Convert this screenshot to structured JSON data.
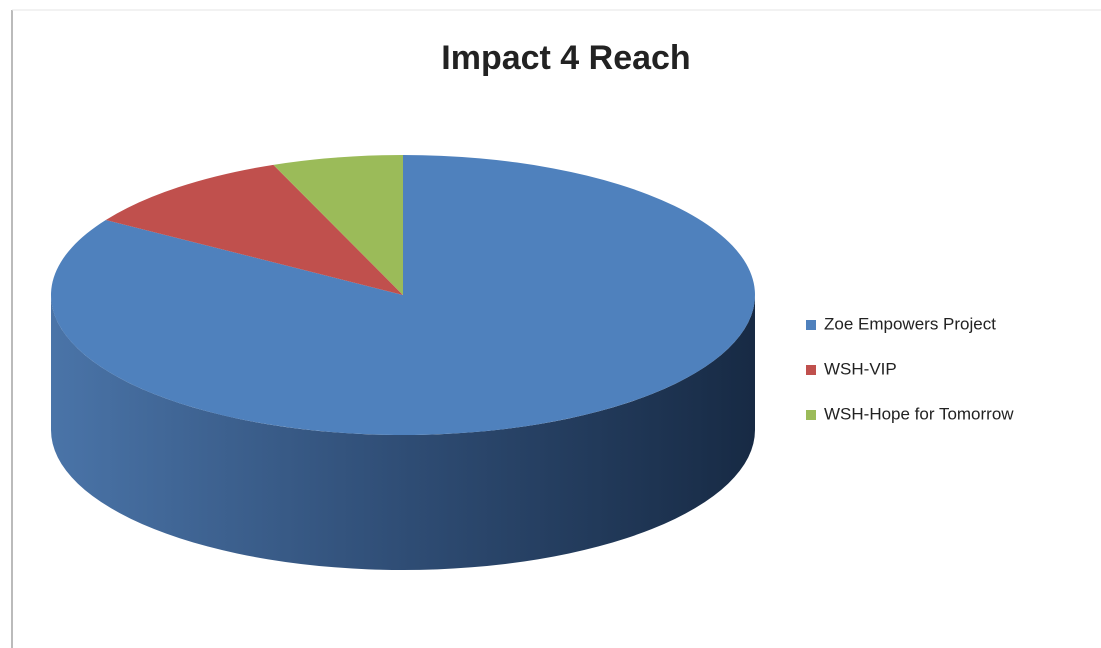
{
  "chart_data": {
    "type": "pie",
    "title": "Impact 4 Reach",
    "categories": [
      "Zoe Empowers Project",
      "WSH-VIP",
      "WSH-Hope for Tomorrow"
    ],
    "values": [
      84,
      10,
      6
    ],
    "colors": [
      "#4f81bd",
      "#c0504d",
      "#9bbb59"
    ],
    "legend": "right"
  }
}
